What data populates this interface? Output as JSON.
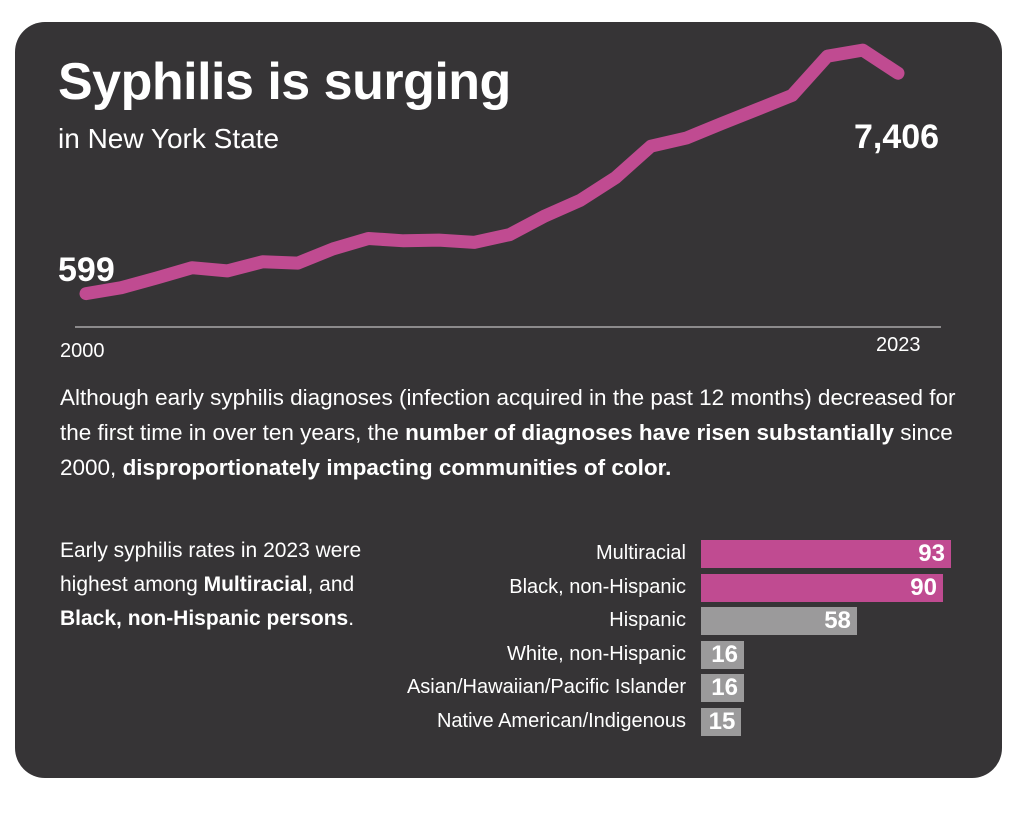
{
  "title": "Syphilis is surging",
  "subtitle": "in New York State",
  "line_chart": {
    "start_label": "599",
    "end_label": "7,406",
    "start_year": "2000",
    "end_year": "2023"
  },
  "description": {
    "part1": "Although early syphilis diagnoses (infection acquired in the past 12 months) decreased for the first time in over ten years, the ",
    "bold1": "number of diagnoses have risen substantially",
    "part2": " since 2000, ",
    "bold2": "disproportionately impacting communities of color."
  },
  "note": {
    "part1": "Early syphilis rates in 2023 were highest among ",
    "bold1": "Multiracial",
    "part2": ", and ",
    "bold2": "Black, non-Hispanic persons",
    "part3": "."
  },
  "colors": {
    "background": "#363436",
    "accent": "#c04b91",
    "muted": "#9b9a9b",
    "text": "#ffffff"
  },
  "chart_data": [
    {
      "type": "line",
      "x": [
        2000,
        2001,
        2002,
        2003,
        2004,
        2005,
        2006,
        2007,
        2008,
        2009,
        2010,
        2011,
        2012,
        2013,
        2014,
        2015,
        2016,
        2017,
        2018,
        2019,
        2020,
        2021,
        2022,
        2023
      ],
      "series": [
        {
          "values": [
            599,
            780,
            1080,
            1400,
            1300,
            1580,
            1540,
            1980,
            2300,
            2230,
            2250,
            2180,
            2420,
            3000,
            3480,
            4180,
            5150,
            5400,
            5850,
            6280,
            6720,
            7930,
            8120,
            7406
          ]
        }
      ],
      "title": "",
      "xlabel": "",
      "ylabel": "",
      "xlim": [
        2000,
        2023
      ],
      "ylim": [
        0,
        8400
      ],
      "grid": false,
      "annotations": [
        "599",
        "7,406",
        "2000",
        "2023"
      ]
    },
    {
      "type": "bar",
      "orientation": "horizontal",
      "categories": [
        "Multiracial",
        "Black, non-Hispanic",
        "Hispanic",
        "White, non-Hispanic",
        "Asian/Hawaiian/Pacific Islander",
        "Native American/Indigenous"
      ],
      "values": [
        93,
        90,
        58,
        16,
        16,
        15
      ],
      "highlight": [
        true,
        true,
        false,
        false,
        false,
        false
      ],
      "title": "",
      "xlabel": "",
      "ylabel": "",
      "xlim": [
        0,
        93
      ]
    }
  ]
}
